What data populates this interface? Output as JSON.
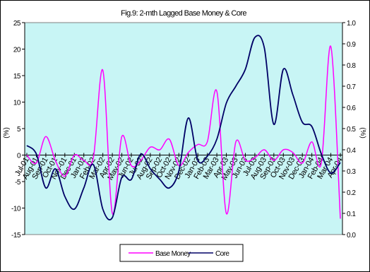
{
  "chart_data": {
    "type": "line",
    "title": "Fig.9: 2-mth Lagged Base Money & Core",
    "ylabel_left": "(%)",
    "ylabel_right": "(%)",
    "ylim_left": [
      -15,
      25
    ],
    "ylim_right": [
      0.0,
      1.0
    ],
    "yticks_left": [
      "25",
      "20",
      "15",
      "10",
      "5",
      "0",
      "-5",
      "-10",
      "-15"
    ],
    "yticks_right": [
      "1.0",
      "0.9",
      "0.8",
      "0.7",
      "0.6",
      "0.5",
      "0.4",
      "0.3",
      "0.2",
      "0.1",
      "0.0"
    ],
    "categories": [
      "Jul-01",
      "Aug-01",
      "Sep-01",
      "Oct-01",
      "Nov-01",
      "Dec-01",
      "Jan-02",
      "Feb-02",
      "Mar-02",
      "Apr-02",
      "May-02",
      "Jun-02",
      "Jul-02",
      "Aug-02",
      "Sep-02",
      "Oct-02",
      "Nov-02",
      "Dec-02",
      "Jan-03",
      "Feb-03",
      "Mar-03",
      "Apr-03",
      "May-03",
      "Jun-03",
      "Jul-03",
      "Aug-03",
      "Sep-03",
      "Oct-03",
      "Nov-03",
      "Dec-03",
      "Jan-04",
      "Feb-04",
      "Mar-04",
      "Apr-04"
    ],
    "gridlines": false,
    "plot_background": "#c8f5f5",
    "legend_position": "bottom",
    "series": [
      {
        "name": "Base Money",
        "axis": "left",
        "color": "#ff00ff",
        "values": [
          0,
          -1.5,
          3.5,
          -1,
          -4,
          0,
          -1,
          -0.5,
          16,
          -11,
          3.5,
          -2,
          -1,
          1.5,
          1,
          3,
          -2,
          0.5,
          2,
          2.5,
          12,
          -11,
          2.5,
          -1,
          -0.5,
          1,
          -1,
          1,
          0.5,
          -1.5,
          2.5,
          -1.5,
          20.5,
          -12
        ]
      },
      {
        "name": "Core",
        "axis": "right",
        "color": "#000066",
        "values": [
          0.42,
          0.38,
          0.22,
          0.31,
          0.18,
          0.12,
          0.22,
          0.33,
          0.12,
          0.08,
          0.27,
          0.26,
          0.38,
          0.31,
          0.26,
          0.22,
          0.3,
          0.55,
          0.35,
          0.37,
          0.45,
          0.62,
          0.7,
          0.78,
          0.93,
          0.88,
          0.52,
          0.78,
          0.66,
          0.53,
          0.51,
          0.38,
          0.29,
          0.34
        ]
      }
    ]
  }
}
